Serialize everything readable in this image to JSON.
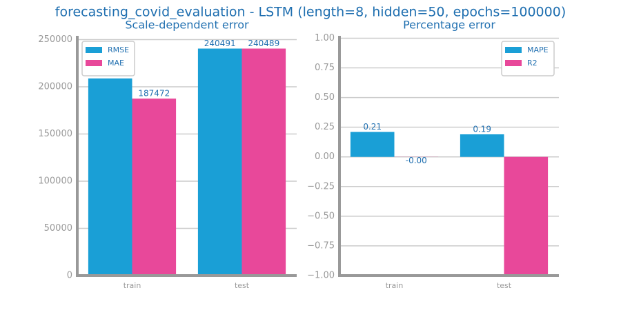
{
  "title": "forecasting_covid_evaluation - LSTM (length=8, hidden=50, epochs=100000)",
  "chart_data": [
    {
      "type": "bar",
      "title": "Scale-dependent error",
      "categories": [
        "train",
        "test"
      ],
      "series": [
        {
          "name": "RMSE",
          "color": "#1a9fd6",
          "values": [
            208865,
            240491
          ]
        },
        {
          "name": "MAE",
          "color": "#e8489a",
          "values": [
            187472,
            240489
          ]
        }
      ],
      "ylim": [
        0,
        254000
      ],
      "yticks": [
        0,
        50000,
        100000,
        150000,
        200000,
        250000
      ],
      "grid": true,
      "legend": "upper left"
    },
    {
      "type": "bar",
      "title": "Percentage error",
      "categories": [
        "train",
        "test"
      ],
      "series": [
        {
          "name": "MAPE",
          "color": "#1a9fd6",
          "values": [
            0.21,
            0.19
          ]
        },
        {
          "name": "R2",
          "color": "#e8489a",
          "values": [
            -0.001,
            -1
          ],
          "value_labels": [
            "-0.00",
            null
          ]
        }
      ],
      "ylim": [
        -1,
        1.02
      ],
      "yticks": [
        {
          "value": -1,
          "label": "−1.00"
        },
        {
          "value": -0.75,
          "label": "−0.75"
        },
        {
          "value": -0.5,
          "label": "−0.50"
        },
        {
          "value": -0.25,
          "label": "−0.25"
        },
        {
          "value": 0,
          "label": "0.00"
        },
        {
          "value": 0.25,
          "label": "0.25"
        },
        {
          "value": 0.5,
          "label": "0.50"
        },
        {
          "value": 0.75,
          "label": "0.75"
        },
        {
          "value": 1,
          "label": "1.00"
        }
      ],
      "grid": true,
      "legend": "upper right"
    }
  ]
}
